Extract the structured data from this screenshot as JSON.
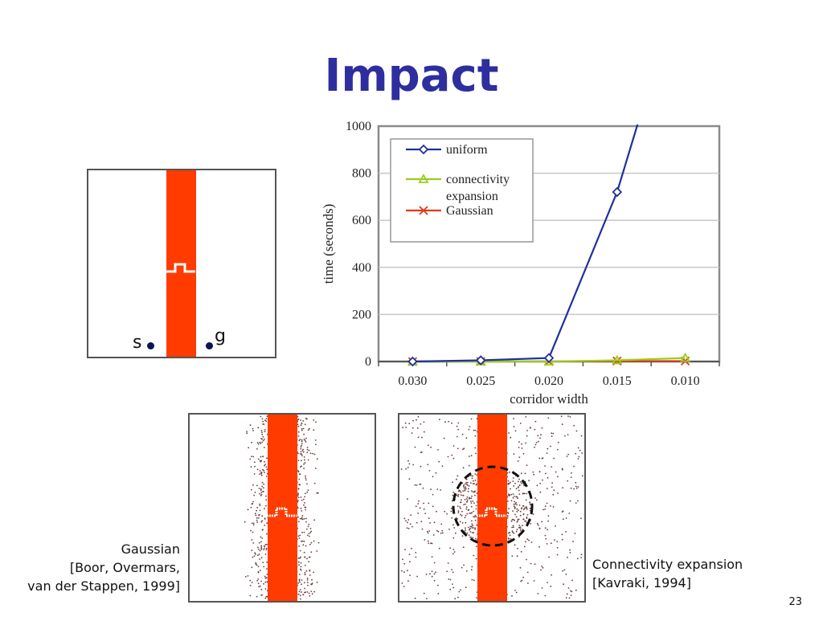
{
  "slide": {
    "title": "Impact",
    "page_number": "23",
    "start_label": "s",
    "goal_label": "g",
    "caption_gaussian": [
      "Gaussian",
      "[Boor, Overmars,",
      "van der Stappen, 1999]"
    ],
    "caption_connectivity": [
      "Connectivity expansion",
      "[Kavraki, 1994]"
    ]
  },
  "colors": {
    "title": "#2e2e9e",
    "corridor": "#ff3b00",
    "uniform": "#1f2f9f",
    "connectivity": "#9acd1c",
    "gaussian": "#e03a1a"
  },
  "chart_data": {
    "type": "line",
    "xlabel": "corridor width",
    "ylabel": "time (seconds)",
    "categories": [
      "0.030",
      "0.025",
      "0.020",
      "0.015",
      "0.010"
    ],
    "ylim": [
      0,
      1000
    ],
    "yticks": [
      "0",
      "200",
      "400",
      "600",
      "800",
      "1000"
    ],
    "grid": true,
    "legend_position": "top-left",
    "series": [
      {
        "name": "uniform",
        "marker": "diamond",
        "values": [
          0,
          5,
          15,
          720,
          null
        ],
        "extends_above_top_at": 0.0135
      },
      {
        "name": "connectivity expansion",
        "marker": "triangle",
        "values": [
          0,
          0,
          0,
          5,
          15
        ]
      },
      {
        "name": "Gaussian",
        "marker": "x",
        "values": [
          0,
          0,
          0,
          2,
          2
        ]
      }
    ]
  }
}
